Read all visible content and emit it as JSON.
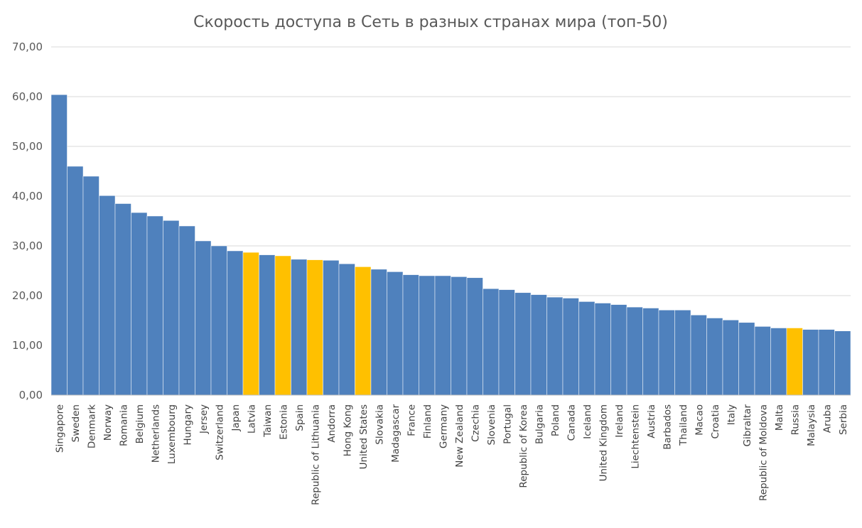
{
  "chart_data": {
    "type": "bar",
    "title": "Скорость доступа в Сеть в разных странах мира (топ-50)",
    "xlabel": "",
    "ylabel": "",
    "ylim": [
      0,
      70
    ],
    "yticks": [
      "0,00",
      "10,00",
      "20,00",
      "30,00",
      "40,00",
      "50,00",
      "60,00",
      "70,00"
    ],
    "grid": true,
    "legend": "none",
    "colors": {
      "default": "#4f81bd",
      "highlight": "#ffc000"
    },
    "categories": [
      "Singapore",
      "Sweden",
      "Denmark",
      "Norway",
      "Romania",
      "Belgium",
      "Netherlands",
      "Luxembourg",
      "Hungary",
      "Jersey",
      "Switzerland",
      "Japan",
      "Latvia",
      "Taiwan",
      "Estonia",
      "Spain",
      "Republic of Lithuania",
      "Andorra",
      "Hong Kong",
      "United States",
      "Slovakia",
      "Madagascar",
      "France",
      "Finland",
      "Germany",
      "New Zealand",
      "Czechia",
      "Slovenia",
      "Portugal",
      "Republic of Korea",
      "Bulgaria",
      "Poland",
      "Canada",
      "Iceland",
      "United Kingdom",
      "Ireland",
      "Liechtenstein",
      "Austria",
      "Barbados",
      "Thailand",
      "Macao",
      "Croatia",
      "Italy",
      "Gibraltar",
      "Republic of Moldova",
      "Malta",
      "Russia",
      "Malaysia",
      "Aruba",
      "Serbia"
    ],
    "values": [
      60.4,
      46.0,
      44.0,
      40.1,
      38.5,
      36.7,
      36.0,
      35.1,
      34.0,
      31.0,
      30.0,
      29.0,
      28.7,
      28.2,
      28.0,
      27.3,
      27.2,
      27.1,
      26.4,
      25.8,
      25.3,
      24.8,
      24.2,
      24.0,
      24.0,
      23.8,
      23.6,
      21.4,
      21.2,
      20.6,
      20.2,
      19.7,
      19.5,
      18.8,
      18.5,
      18.2,
      17.7,
      17.5,
      17.1,
      17.1,
      16.1,
      15.5,
      15.1,
      14.6,
      13.8,
      13.5,
      13.5,
      13.2,
      13.2,
      12.9
    ],
    "highlighted": [
      "Latvia",
      "Estonia",
      "Republic of Lithuania",
      "United States",
      "Russia"
    ]
  }
}
